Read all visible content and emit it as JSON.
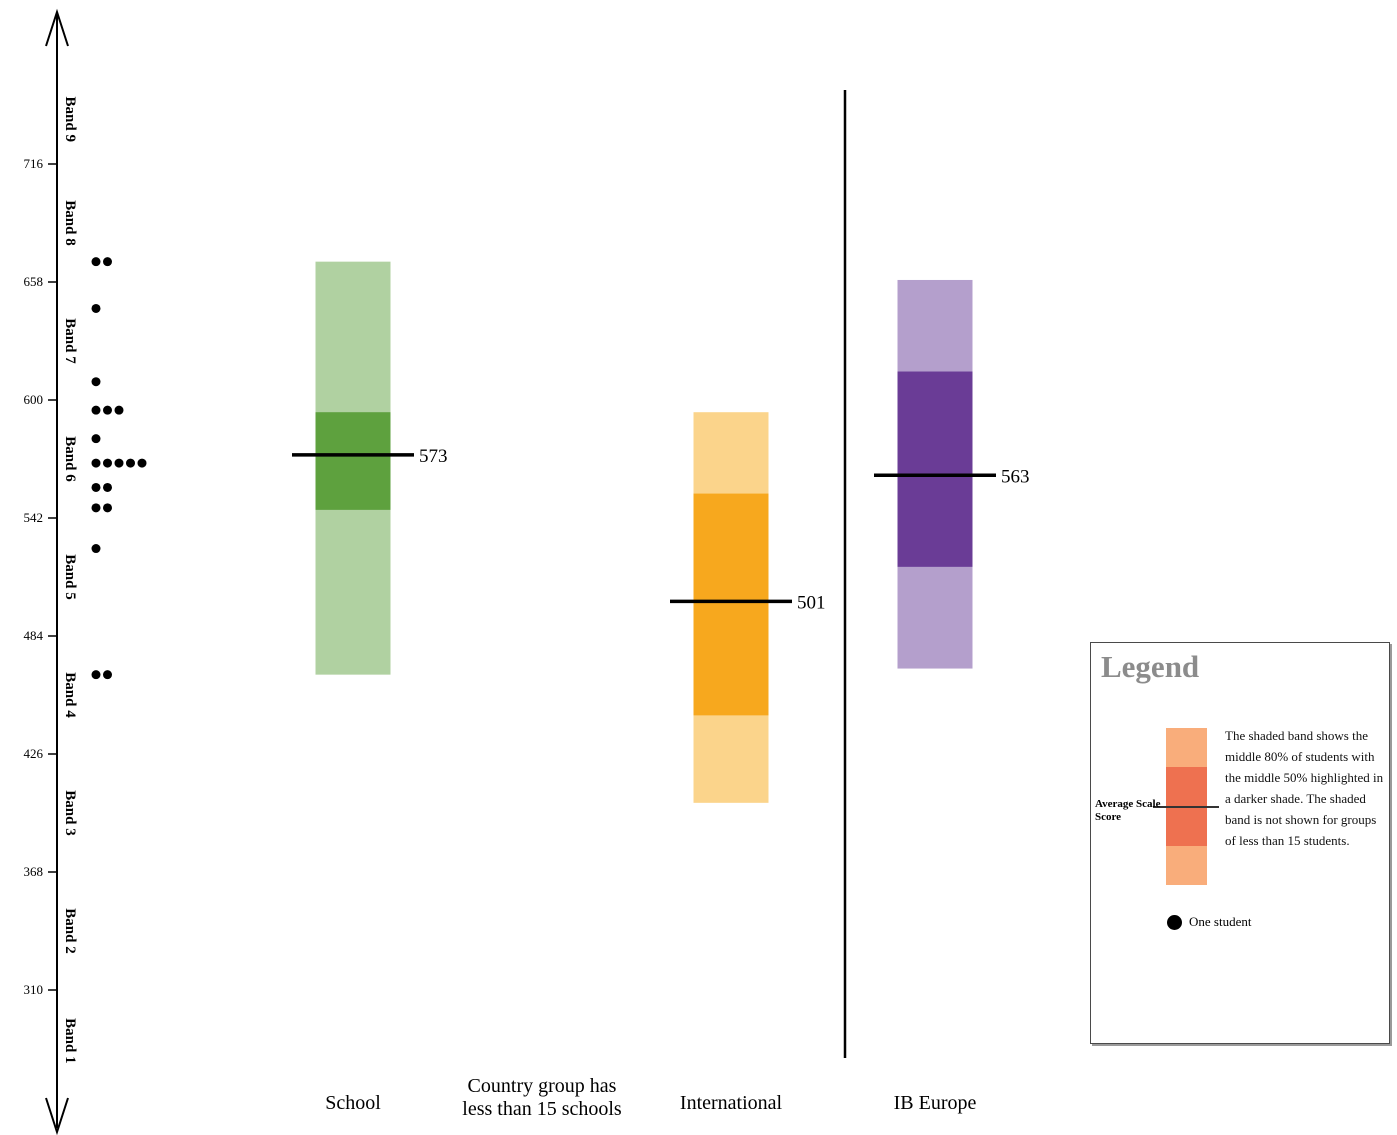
{
  "chart_data": {
    "type": "box-band",
    "title": "",
    "ylim": [
      260,
      760
    ],
    "y_ticks": [
      716,
      658,
      600,
      542,
      484,
      426,
      368,
      310
    ],
    "bands": [
      {
        "label": "Band 9",
        "min": 716,
        "max": 760
      },
      {
        "label": "Band 8",
        "min": 658,
        "max": 716
      },
      {
        "label": "Band 7",
        "min": 600,
        "max": 658
      },
      {
        "label": "Band 6",
        "min": 542,
        "max": 600
      },
      {
        "label": "Band 5",
        "min": 484,
        "max": 542
      },
      {
        "label": "Band 4",
        "min": 426,
        "max": 484
      },
      {
        "label": "Band 3",
        "min": 368,
        "max": 426
      },
      {
        "label": "Band 2",
        "min": 310,
        "max": 368
      },
      {
        "label": "Band 1",
        "min": 260,
        "max": 310
      }
    ],
    "student_dots": [
      {
        "score": 668,
        "count": 2
      },
      {
        "score": 645,
        "count": 1
      },
      {
        "score": 609,
        "count": 1
      },
      {
        "score": 595,
        "count": 3
      },
      {
        "score": 581,
        "count": 1
      },
      {
        "score": 569,
        "count": 5
      },
      {
        "score": 557,
        "count": 2
      },
      {
        "score": 547,
        "count": 2
      },
      {
        "score": 527,
        "count": 1
      },
      {
        "score": 465,
        "count": 2
      }
    ],
    "groups": [
      {
        "name": "School",
        "label_lines": [
          "School"
        ],
        "mean": 573,
        "p10": 465,
        "p25": 546,
        "p75": 594,
        "p90": 668,
        "outer_color": "#b0d1a1",
        "inner_color": "#5ea13e",
        "show_band": true
      },
      {
        "name": "Country group has less than 15 schools",
        "label_lines": [
          "Country group has",
          "less than 15 schools"
        ],
        "mean": null,
        "show_band": false
      },
      {
        "name": "International",
        "label_lines": [
          "International"
        ],
        "mean": 501,
        "p10": 402,
        "p25": 445,
        "p75": 554,
        "p90": 594,
        "outer_color": "#fbd48b",
        "inner_color": "#f7a81e",
        "show_band": true
      },
      {
        "name": "IB Europe",
        "label_lines": [
          "IB Europe"
        ],
        "mean": 563,
        "p10": 468,
        "p25": 518,
        "p75": 614,
        "p90": 659,
        "outer_color": "#b49fcc",
        "inner_color": "#6a3c96",
        "show_band": true
      }
    ]
  },
  "legend": {
    "title": "Legend",
    "avg_label": "Average Scale Score",
    "description": "The shaded band shows the middle 80% of students with the middle 50% highlighted in a darker shade. The shaded band is not shown for groups of less than 15 students.",
    "dot_label": "One student",
    "outer_color": "#f9ad7b",
    "inner_color": "#ee7150"
  }
}
